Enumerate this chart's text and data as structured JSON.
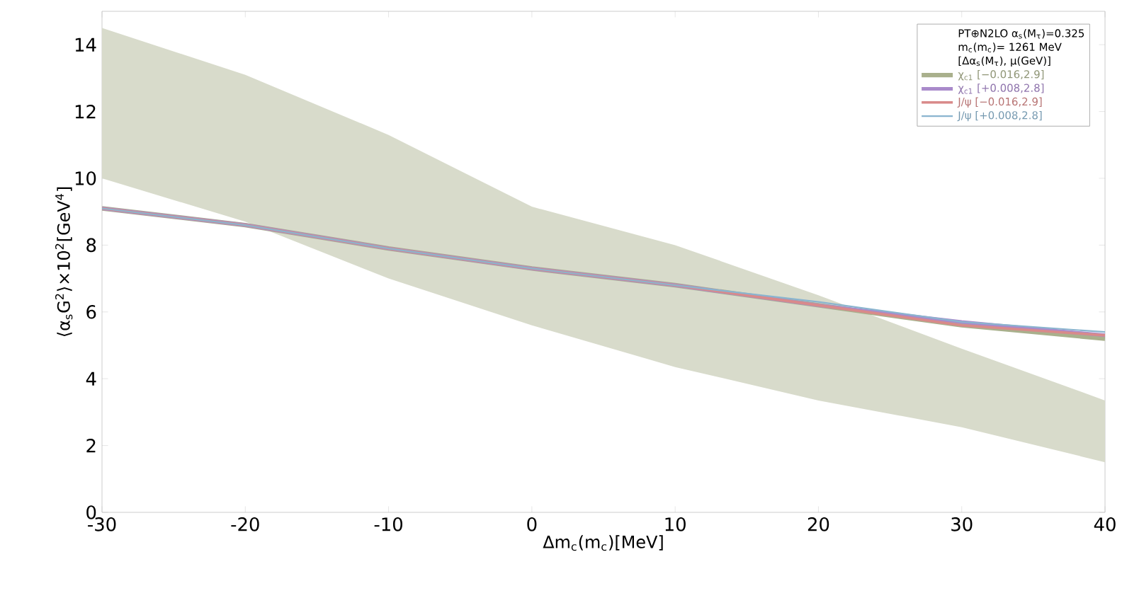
{
  "chart_data": {
    "type": "line",
    "xlabel": "Δm$_{c}$(m$_{c}$)[MeV]",
    "ylabel": "⟨α$_{s}$G$^{2}$⟩×10$^{2}$[GeV$^{4}$]",
    "annotations": [
      "PT⊕N2LO  α$_{s}$(M$_{τ}$)=0.325",
      "m$_{c}$(m$_{c}$)= 1261 MeV",
      "[Δα$_{s}$(M$_{τ}$), μ(GeV)]"
    ],
    "xlim": [
      -30,
      40
    ],
    "ylim": [
      0,
      15
    ],
    "xticks": [
      -30,
      -20,
      -10,
      0,
      10,
      20,
      30,
      40
    ],
    "yticks": [
      0,
      2,
      4,
      6,
      8,
      10,
      12,
      14
    ],
    "grid": false,
    "legend": "top right",
    "marker": "none",
    "line_style": "solid",
    "series": [
      {
        "name": "χ$_{c1}$ [−0.016,2.9]",
        "color": "#a9b08c",
        "x": [
          -30,
          -20,
          -10,
          0,
          10,
          20,
          30,
          40
        ],
        "values": [
          9.1,
          8.6,
          7.9,
          7.3,
          6.8,
          6.2,
          5.6,
          5.2
        ],
        "lower": [
          10.0,
          8.7,
          7.0,
          5.6,
          4.35,
          3.35,
          2.55,
          1.5
        ],
        "upper": [
          14.5,
          13.1,
          11.3,
          9.15,
          8.0,
          6.5,
          4.9,
          3.35
        ]
      },
      {
        "name": "χ$_{c1}$ [+0.008,2.8]",
        "color": "#a98acb",
        "x": [
          -30,
          -20,
          -10,
          0,
          10,
          20,
          30,
          40
        ],
        "values": [
          9.1,
          8.6,
          7.9,
          7.3,
          6.8,
          6.2,
          5.7,
          5.3
        ]
      },
      {
        "name": "J/ψ [−0.016,2.9]",
        "color": "#d98a8a",
        "x": [
          -30,
          -20,
          -10,
          0,
          10,
          20,
          30,
          40
        ],
        "values": [
          9.1,
          8.6,
          7.9,
          7.3,
          6.8,
          6.2,
          5.6,
          5.3
        ]
      },
      {
        "name": "J/ψ [+0.008,2.8]",
        "color": "#8ab4cf",
        "x": [
          -30,
          -20,
          -10,
          0,
          10,
          20,
          30,
          40
        ],
        "values": [
          9.1,
          8.6,
          7.9,
          7.3,
          6.8,
          6.3,
          5.7,
          5.4
        ]
      }
    ]
  }
}
